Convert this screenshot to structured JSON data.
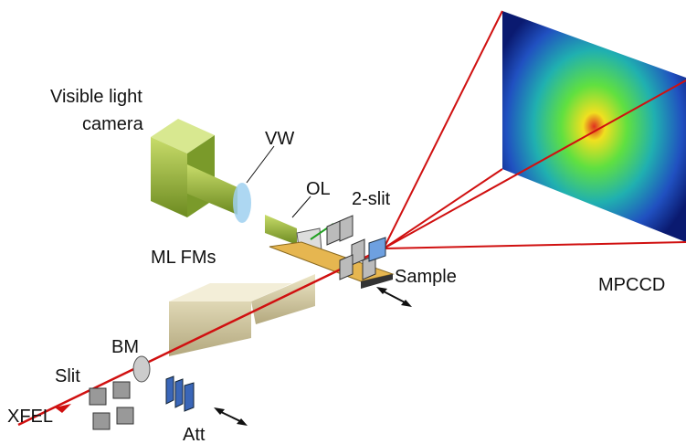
{
  "nodes": [
    {
      "lines": [
        "Visible light",
        "camera"
      ]
    },
    {
      "label": "VW"
    },
    {
      "label": "OL"
    },
    {
      "label": "2-slit"
    },
    {
      "label": "ML FMs"
    },
    {
      "label": "Sample"
    },
    {
      "label": "MPCCD"
    },
    {
      "label": "BM"
    },
    {
      "label": "Slit"
    },
    {
      "label": "XFEL"
    },
    {
      "label": "Att"
    }
  ]
}
